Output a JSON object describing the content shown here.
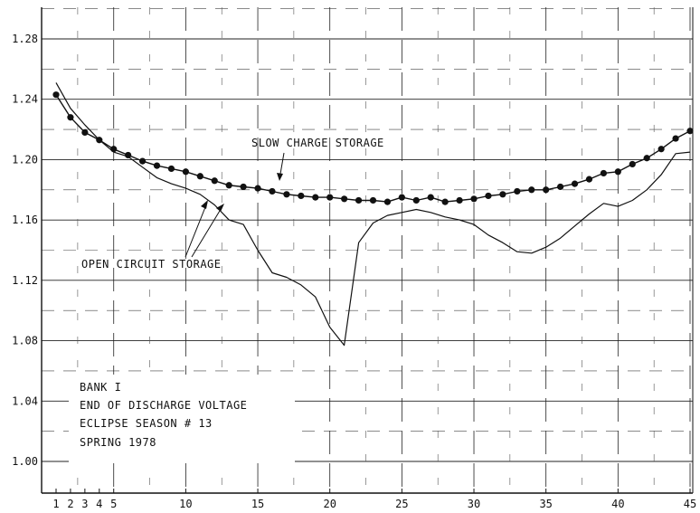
{
  "chart_data": {
    "type": "line",
    "title": "",
    "xlabel": "",
    "ylabel": "",
    "xlim": [
      1,
      45
    ],
    "ylim": [
      0.98,
      1.3
    ],
    "grid": true,
    "x_ticks": [
      1,
      2,
      3,
      4,
      5,
      10,
      15,
      20,
      25,
      30,
      35,
      40,
      45
    ],
    "x_tick_labels": [
      "1",
      "2",
      "3",
      "4",
      "5",
      "10",
      "15",
      "20",
      "25",
      "30",
      "35",
      "40",
      "45"
    ],
    "y_ticks": [
      1.0,
      1.04,
      1.08,
      1.12,
      1.16,
      1.2,
      1.24,
      1.28
    ],
    "y_tick_labels": [
      "1.00",
      "1.04",
      "1.08",
      "1.12",
      "1.16",
      "1.20",
      "1.24",
      "1.28"
    ],
    "series": [
      {
        "name": "SLOW CHARGE STORAGE",
        "marker": "circle",
        "x": [
          1,
          2,
          3,
          4,
          5,
          6,
          7,
          8,
          9,
          10,
          11,
          12,
          13,
          14,
          15,
          16,
          17,
          18,
          19,
          20,
          21,
          22,
          23,
          24,
          25,
          26,
          27,
          28,
          29,
          30,
          31,
          32,
          33,
          34,
          35,
          36,
          37,
          38,
          39,
          40,
          41,
          42,
          43,
          44,
          45
        ],
        "y": [
          1.243,
          1.228,
          1.218,
          1.213,
          1.207,
          1.203,
          1.199,
          1.196,
          1.194,
          1.192,
          1.189,
          1.186,
          1.183,
          1.182,
          1.181,
          1.179,
          1.177,
          1.176,
          1.175,
          1.175,
          1.174,
          1.173,
          1.173,
          1.172,
          1.175,
          1.173,
          1.175,
          1.172,
          1.173,
          1.174,
          1.176,
          1.177,
          1.179,
          1.18,
          1.18,
          1.182,
          1.184,
          1.187,
          1.191,
          1.192,
          1.197,
          1.201,
          1.207,
          1.214,
          1.219
        ]
      },
      {
        "name": "OPEN CIRCUIT STORAGE",
        "marker": "none",
        "x": [
          1,
          2,
          3,
          4,
          5,
          6,
          7,
          8,
          9,
          10,
          11,
          12,
          13,
          14,
          15,
          16,
          17,
          18,
          19,
          20,
          21,
          22,
          23,
          24,
          25,
          26,
          27,
          28,
          29,
          30,
          31,
          32,
          33,
          34,
          35,
          36,
          37,
          38,
          39,
          40,
          41,
          42,
          43,
          44,
          45
        ],
        "y": [
          1.251,
          1.234,
          1.223,
          1.213,
          1.205,
          1.202,
          1.195,
          1.188,
          1.184,
          1.181,
          1.177,
          1.17,
          1.16,
          1.157,
          1.14,
          1.125,
          1.122,
          1.117,
          1.109,
          1.089,
          1.077,
          1.145,
          1.158,
          1.163,
          1.165,
          1.167,
          1.165,
          1.162,
          1.16,
          1.157,
          1.15,
          1.145,
          1.139,
          1.138,
          1.142,
          1.148,
          1.156,
          1.164,
          1.171,
          1.169,
          1.173,
          1.18,
          1.19,
          1.204,
          1.205
        ]
      }
    ],
    "annotations": [
      {
        "text": "SLOW CHARGE STORAGE",
        "target_series": 0
      },
      {
        "text": "OPEN CIRCUIT STORAGE",
        "target_series": 1
      }
    ],
    "info_box": [
      "BANK I",
      "END OF DISCHARGE VOLTAGE",
      "ECLIPSE SEASON # 13",
      "SPRING 1978"
    ]
  },
  "colors": {
    "ink": "#111111",
    "grid": "#222222",
    "background": "#ffffff"
  }
}
